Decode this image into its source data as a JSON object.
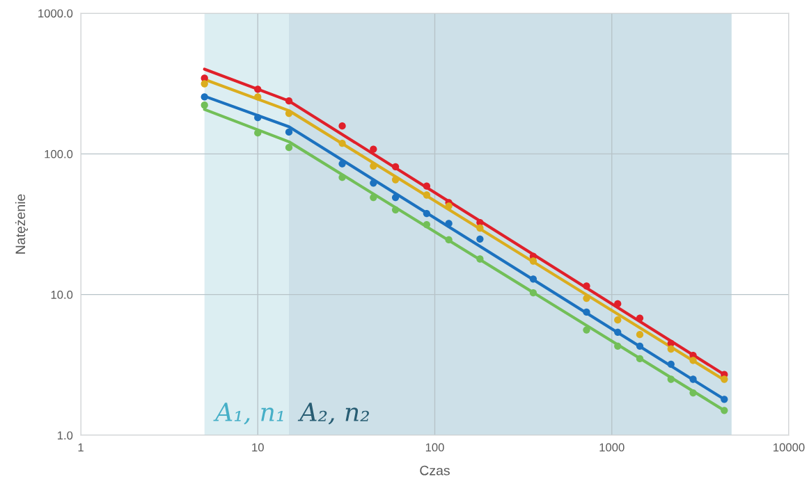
{
  "chart_data": {
    "type": "scatter",
    "xlabel": "Czas",
    "ylabel": "Natężenie",
    "log": "xy",
    "grid": true,
    "marker": "circle",
    "x": [
      5,
      10,
      15,
      30,
      45,
      60,
      90,
      120,
      180,
      360,
      720,
      1080,
      1440,
      2160,
      2880,
      4320
    ],
    "series": [
      {
        "color": "#e0202a",
        "values": [
          345,
          288,
          238,
          158,
          108,
          81,
          59,
          45,
          32.5,
          18.7,
          11.5,
          8.6,
          6.8,
          4.5,
          3.7,
          2.7
        ]
      },
      {
        "color": "#dbad1e",
        "values": [
          315,
          254,
          194,
          119,
          82,
          65.5,
          51,
          42.6,
          29.7,
          17.3,
          9.4,
          6.6,
          5.2,
          4.1,
          3.4,
          2.5
        ]
      },
      {
        "color": "#1c72bf",
        "values": [
          254,
          181,
          143,
          85,
          62,
          49,
          37.7,
          32,
          24.8,
          12.9,
          7.5,
          5.4,
          4.3,
          3.2,
          2.5,
          1.8
        ]
      },
      {
        "color": "#72bf58",
        "values": [
          222,
          141,
          111,
          68,
          49,
          40,
          31.4,
          24.5,
          17.9,
          10.3,
          5.6,
          4.3,
          3.5,
          2.5,
          2.0,
          1.5
        ]
      },
      {
        "type": "line",
        "marker": "none",
        "color": "#e0202a",
        "x": [
          5,
          15,
          4320
        ],
        "values": [
          400,
          238,
          2.7
        ]
      },
      {
        "type": "line",
        "marker": "none",
        "color": "#dbad1e",
        "x": [
          5,
          15,
          4320
        ],
        "values": [
          338,
          203,
          2.47
        ]
      },
      {
        "type": "line",
        "marker": "none",
        "color": "#1c72bf",
        "x": [
          5,
          15,
          4320
        ],
        "values": [
          257,
          156,
          1.8
        ]
      },
      {
        "type": "line",
        "marker": "none",
        "color": "#72bf58",
        "x": [
          5,
          15,
          4320
        ],
        "values": [
          207,
          122,
          1.5
        ]
      }
    ],
    "xlim": [
      1,
      10000
    ],
    "ylim": [
      1,
      1000
    ],
    "xticks": [
      1,
      10,
      100,
      1000,
      10000
    ],
    "yticks": [
      {
        "value": 1,
        "label": "1.0"
      },
      {
        "value": 10,
        "label": "10.0"
      },
      {
        "value": 100,
        "label": "100.0"
      },
      {
        "value": 1000,
        "label": "1000.0"
      }
    ],
    "bands": [
      {
        "axis": "x",
        "from": 5,
        "to": 15,
        "label": "A₁, n₁",
        "color": "#dceef2"
      },
      {
        "axis": "x",
        "from": 15,
        "to": 4750,
        "label": "A₂, n₂",
        "color": "#cde0e8"
      }
    ]
  }
}
